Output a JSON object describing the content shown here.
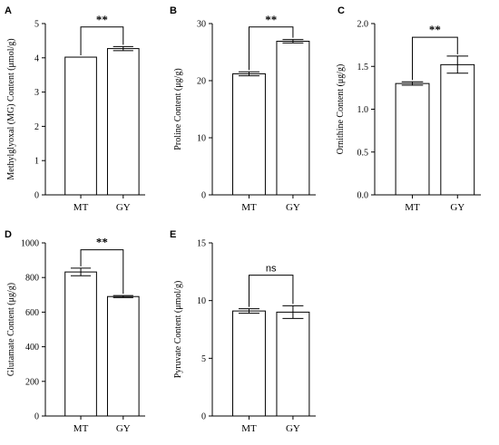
{
  "chart_data": [
    {
      "panel": "A",
      "type": "bar",
      "categories": [
        "MT",
        "GY"
      ],
      "values": [
        4.02,
        4.27
      ],
      "errors": [
        0.0,
        0.06
      ],
      "ylabel": "Methylglyoxal (MG) Content (μmol/g)",
      "ylim": [
        0,
        5
      ],
      "yticks": [
        0,
        1,
        2,
        3,
        4,
        5
      ],
      "ytick_labels": [
        "0",
        "1",
        "2",
        "3",
        "4",
        "5"
      ],
      "significance": "**",
      "bracket_y": 4.9
    },
    {
      "panel": "B",
      "type": "bar",
      "categories": [
        "MT",
        "GY"
      ],
      "values": [
        21.2,
        26.9
      ],
      "errors": [
        0.35,
        0.3
      ],
      "ylabel": "Proline Content (μg/g)",
      "ylim": [
        0,
        30
      ],
      "yticks": [
        0,
        10,
        20,
        30
      ],
      "ytick_labels": [
        "0",
        "10",
        "20",
        "30"
      ],
      "significance": "**",
      "bracket_y": 29.4
    },
    {
      "panel": "C",
      "type": "bar",
      "categories": [
        "MT",
        "GY"
      ],
      "values": [
        1.3,
        1.52
      ],
      "errors": [
        0.02,
        0.1
      ],
      "ylabel": "Ornithine Content (μg/g)",
      "ylim": [
        0,
        2.0
      ],
      "yticks": [
        0,
        0.5,
        1.0,
        1.5,
        2.0
      ],
      "ytick_labels": [
        "0.0",
        "0.5",
        "1.0",
        "1.5",
        "2.0"
      ],
      "significance": "**",
      "bracket_y": 1.84
    },
    {
      "panel": "D",
      "type": "bar",
      "categories": [
        "MT",
        "GY"
      ],
      "values": [
        832,
        690
      ],
      "errors": [
        22,
        6
      ],
      "ylabel": "Glutamate Content (μg/g)",
      "ylim": [
        0,
        1000
      ],
      "yticks": [
        0,
        200,
        400,
        600,
        800,
        1000
      ],
      "ytick_labels": [
        "0",
        "200",
        "400",
        "600",
        "800",
        "1000"
      ],
      "significance": "**",
      "bracket_y": 960
    },
    {
      "panel": "E",
      "type": "bar",
      "categories": [
        "MT",
        "GY"
      ],
      "values": [
        9.1,
        9.0
      ],
      "errors": [
        0.2,
        0.55
      ],
      "ylabel": "Pyruvate Content (μmol/g)",
      "ylim": [
        0,
        15
      ],
      "yticks": [
        0,
        5,
        10,
        15
      ],
      "ytick_labels": [
        "0",
        "5",
        "10",
        "15"
      ],
      "significance": "ns",
      "bracket_y": 12.2
    }
  ]
}
